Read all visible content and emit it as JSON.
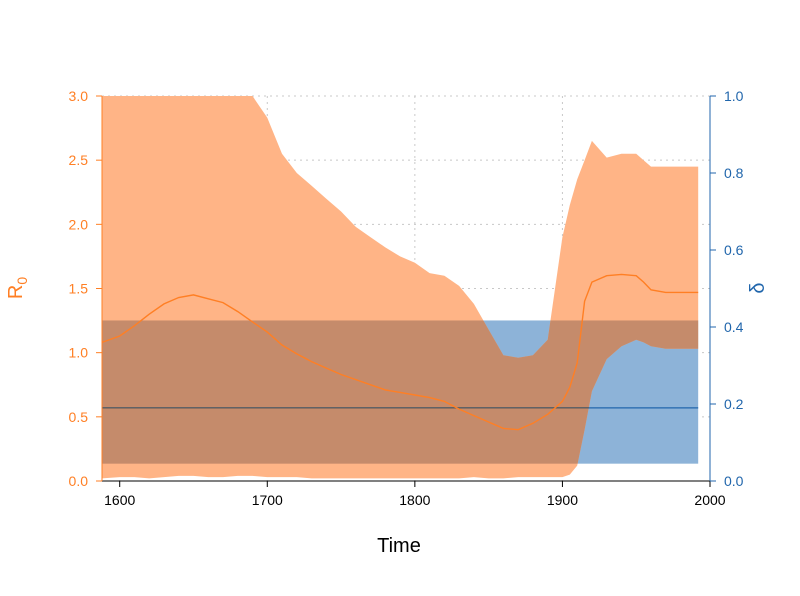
{
  "chart_data": {
    "type": "area",
    "title": "",
    "xlabel": "Time",
    "ylabel_left": "R",
    "ylabel_left_sub": "0",
    "ylabel_right": "δ",
    "xlim": [
      1588,
      2000
    ],
    "ylim_left": [
      0,
      3
    ],
    "ylim_right": [
      0,
      1
    ],
    "grid": true,
    "x_ticks": [
      1600,
      1700,
      1800,
      1900,
      2000
    ],
    "y_left_ticks": [
      0.0,
      0.5,
      1.0,
      1.5,
      2.0,
      2.5,
      3.0
    ],
    "y_left_tick_labels": [
      "0.0",
      "0.5",
      "1.0",
      "1.5",
      "2.0",
      "2.5",
      "3.0"
    ],
    "y_right_ticks": [
      0.0,
      0.2,
      0.4,
      0.6,
      0.8,
      1.0
    ],
    "y_right_tick_labels": [
      "0.0",
      "0.2",
      "0.4",
      "0.6",
      "0.8",
      "1.0"
    ],
    "colors": {
      "r0": "#ff7f24",
      "r0_band": "#ffb486",
      "delta": "#2166ac",
      "delta_band": "#8db3d8",
      "overlap": "#c58b6b",
      "axis": "#000000",
      "grid": "#c8c8c8"
    },
    "series": [
      {
        "axis": "left",
        "x": [
          1588,
          1600,
          1610,
          1620,
          1630,
          1640,
          1650,
          1660,
          1670,
          1680,
          1690,
          1700,
          1710,
          1720,
          1730,
          1740,
          1750,
          1760,
          1770,
          1780,
          1790,
          1800,
          1810,
          1820,
          1830,
          1840,
          1850,
          1860,
          1870,
          1880,
          1890,
          1900,
          1905,
          1910,
          1915,
          1920,
          1930,
          1940,
          1950,
          1955,
          1960,
          1970,
          1980,
          1992
        ],
        "median": [
          1.08,
          1.13,
          1.21,
          1.3,
          1.38,
          1.43,
          1.45,
          1.42,
          1.39,
          1.32,
          1.24,
          1.16,
          1.06,
          0.99,
          0.93,
          0.88,
          0.83,
          0.79,
          0.75,
          0.71,
          0.69,
          0.67,
          0.65,
          0.62,
          0.56,
          0.51,
          0.46,
          0.41,
          0.4,
          0.45,
          0.52,
          0.62,
          0.73,
          0.92,
          1.4,
          1.55,
          1.6,
          1.61,
          1.6,
          1.55,
          1.49,
          1.47,
          1.47,
          1.47
        ],
        "lower": [
          0.02,
          0.03,
          0.03,
          0.02,
          0.03,
          0.04,
          0.04,
          0.03,
          0.03,
          0.04,
          0.04,
          0.03,
          0.03,
          0.03,
          0.02,
          0.02,
          0.02,
          0.02,
          0.02,
          0.02,
          0.02,
          0.02,
          0.02,
          0.02,
          0.02,
          0.03,
          0.02,
          0.02,
          0.03,
          0.03,
          0.03,
          0.03,
          0.05,
          0.12,
          0.4,
          0.7,
          0.95,
          1.05,
          1.1,
          1.08,
          1.05,
          1.03,
          1.03,
          1.03
        ],
        "upper": [
          3.0,
          3.0,
          3.0,
          3.0,
          3.0,
          3.0,
          3.0,
          3.0,
          3.0,
          3.0,
          3.0,
          2.83,
          2.55,
          2.4,
          2.3,
          2.2,
          2.1,
          1.98,
          1.9,
          1.82,
          1.75,
          1.7,
          1.62,
          1.6,
          1.52,
          1.38,
          1.18,
          0.98,
          0.96,
          0.98,
          1.1,
          1.9,
          2.15,
          2.35,
          2.5,
          2.65,
          2.52,
          2.55,
          2.55,
          2.5,
          2.45,
          2.45,
          2.45,
          2.45
        ]
      },
      {
        "axis": "right",
        "x": [
          1588,
          1992
        ],
        "median": [
          0.19,
          0.19
        ],
        "lower": [
          0.045,
          0.045
        ],
        "upper": [
          0.417,
          0.417
        ]
      }
    ]
  }
}
